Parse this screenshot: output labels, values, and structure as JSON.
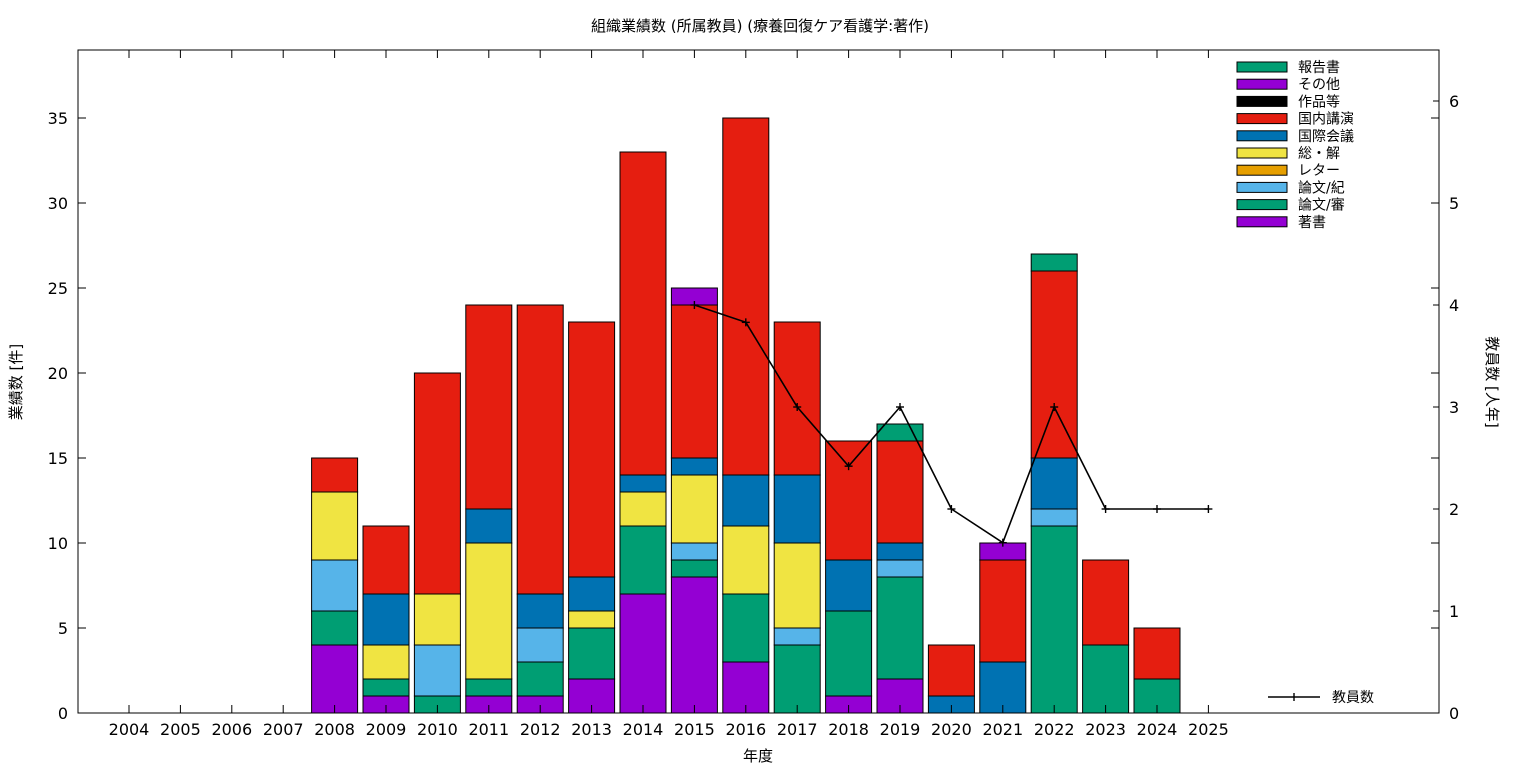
{
  "chart_data": {
    "type": "bar",
    "stacked": true,
    "title": "組織業績数 (所属教員) (療養回復ケア看護学:著作)",
    "xlabel": "年度",
    "ylabel": "業績数 [件]",
    "y2label": "教員数 [人年]",
    "ylim": [
      0,
      39
    ],
    "y2lim": [
      0,
      6.5
    ],
    "yticks": [
      0,
      5,
      10,
      15,
      20,
      25,
      30,
      35
    ],
    "y2ticks": [
      0,
      1,
      2,
      3,
      4,
      5,
      6
    ],
    "grid": false,
    "legend_position": "top-right",
    "categories": [
      "2004",
      "2005",
      "2006",
      "2007",
      "2008",
      "2009",
      "2010",
      "2011",
      "2012",
      "2013",
      "2014",
      "2015",
      "2016",
      "2017",
      "2018",
      "2019",
      "2020",
      "2021",
      "2022",
      "2023",
      "2024",
      "2025"
    ],
    "series": [
      {
        "name": "著書",
        "color": "#9400d3",
        "values": [
          0,
          0,
          0,
          0,
          4,
          1,
          0,
          1,
          1,
          2,
          7,
          8,
          3,
          0,
          1,
          2,
          0,
          0,
          0,
          0,
          0,
          0
        ]
      },
      {
        "name": "論文/審",
        "color": "#009e73",
        "values": [
          0,
          0,
          0,
          0,
          2,
          1,
          1,
          1,
          2,
          3,
          4,
          1,
          4,
          4,
          5,
          6,
          0,
          0,
          11,
          4,
          2,
          0
        ]
      },
      {
        "name": "論文/紀",
        "color": "#56b4e9",
        "values": [
          0,
          0,
          0,
          0,
          3,
          0,
          3,
          0,
          2,
          0,
          0,
          1,
          0,
          1,
          0,
          1,
          0,
          0,
          1,
          0,
          0,
          0
        ]
      },
      {
        "name": "レター",
        "color": "#e69f00",
        "values": [
          0,
          0,
          0,
          0,
          0,
          0,
          0,
          0,
          0,
          0,
          0,
          0,
          0,
          0,
          0,
          0,
          0,
          0,
          0,
          0,
          0,
          0
        ]
      },
      {
        "name": "総・解",
        "color": "#f0e442",
        "values": [
          0,
          0,
          0,
          0,
          4,
          2,
          3,
          8,
          0,
          1,
          2,
          4,
          4,
          5,
          0,
          0,
          0,
          0,
          0,
          0,
          0,
          0
        ]
      },
      {
        "name": "国際会議",
        "color": "#0072b2",
        "values": [
          0,
          0,
          0,
          0,
          0,
          3,
          0,
          2,
          2,
          2,
          1,
          1,
          3,
          4,
          3,
          1,
          1,
          3,
          3,
          0,
          0,
          0
        ]
      },
      {
        "name": "国内講演",
        "color": "#e51e10",
        "values": [
          0,
          0,
          0,
          0,
          2,
          4,
          13,
          12,
          17,
          15,
          19,
          9,
          21,
          9,
          7,
          6,
          3,
          6,
          11,
          5,
          3,
          0
        ]
      },
      {
        "name": "作品等",
        "color": "#000000",
        "values": [
          0,
          0,
          0,
          0,
          0,
          0,
          0,
          0,
          0,
          0,
          0,
          0,
          0,
          0,
          0,
          0,
          0,
          0,
          0,
          0,
          0,
          0
        ]
      },
      {
        "name": "その他",
        "color": "#9400d3",
        "values": [
          0,
          0,
          0,
          0,
          0,
          0,
          0,
          0,
          0,
          0,
          0,
          1,
          0,
          0,
          0,
          0,
          0,
          1,
          0,
          0,
          0,
          0
        ]
      },
      {
        "name": "報告書",
        "color": "#009e73",
        "values": [
          0,
          0,
          0,
          0,
          0,
          0,
          0,
          0,
          0,
          0,
          0,
          0,
          0,
          0,
          0,
          1,
          0,
          0,
          1,
          0,
          0,
          0
        ]
      }
    ],
    "line_series": {
      "name": "教員数",
      "axis": "y2",
      "color": "#000000",
      "x": [
        "2015",
        "2016",
        "2017",
        "2018",
        "2019",
        "2020",
        "2021",
        "2022",
        "2023",
        "2024",
        "2025"
      ],
      "values": [
        4,
        3.83,
        3,
        2.42,
        3,
        2,
        1.67,
        3,
        2,
        2,
        2
      ]
    },
    "legend_order": [
      "報告書",
      "その他",
      "作品等",
      "国内講演",
      "国際会議",
      "総・解",
      "レター",
      "論文/紀",
      "論文/審",
      "著書"
    ]
  }
}
